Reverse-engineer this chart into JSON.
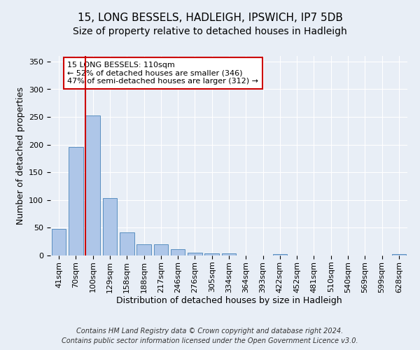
{
  "title": "15, LONG BESSELS, HADLEIGH, IPSWICH, IP7 5DB",
  "subtitle": "Size of property relative to detached houses in Hadleigh",
  "xlabel": "Distribution of detached houses by size in Hadleigh",
  "ylabel": "Number of detached properties",
  "footer_line1": "Contains HM Land Registry data © Crown copyright and database right 2024.",
  "footer_line2": "Contains public sector information licensed under the Open Government Licence v3.0.",
  "categories": [
    "41sqm",
    "70sqm",
    "100sqm",
    "129sqm",
    "158sqm",
    "188sqm",
    "217sqm",
    "246sqm",
    "276sqm",
    "305sqm",
    "334sqm",
    "364sqm",
    "393sqm",
    "422sqm",
    "452sqm",
    "481sqm",
    "510sqm",
    "540sqm",
    "569sqm",
    "599sqm",
    "628sqm"
  ],
  "values": [
    48,
    196,
    252,
    103,
    42,
    20,
    20,
    11,
    5,
    4,
    4,
    0,
    0,
    2,
    0,
    0,
    0,
    0,
    0,
    0,
    2
  ],
  "bar_color": "#aec6e8",
  "bar_edge_color": "#5a8fc0",
  "property_line_color": "#cc0000",
  "annotation_text": "15 LONG BESSELS: 110sqm\n← 52% of detached houses are smaller (346)\n47% of semi-detached houses are larger (312) →",
  "annotation_box_color": "#ffffff",
  "annotation_box_edge": "#cc0000",
  "ylim": [
    0,
    360
  ],
  "yticks": [
    0,
    50,
    100,
    150,
    200,
    250,
    300,
    350
  ],
  "background_color": "#e8eef6",
  "plot_bg_color": "#e8eef6",
  "title_fontsize": 11,
  "subtitle_fontsize": 10,
  "axis_label_fontsize": 9,
  "tick_fontsize": 8,
  "annotation_fontsize": 8,
  "footer_fontsize": 7
}
